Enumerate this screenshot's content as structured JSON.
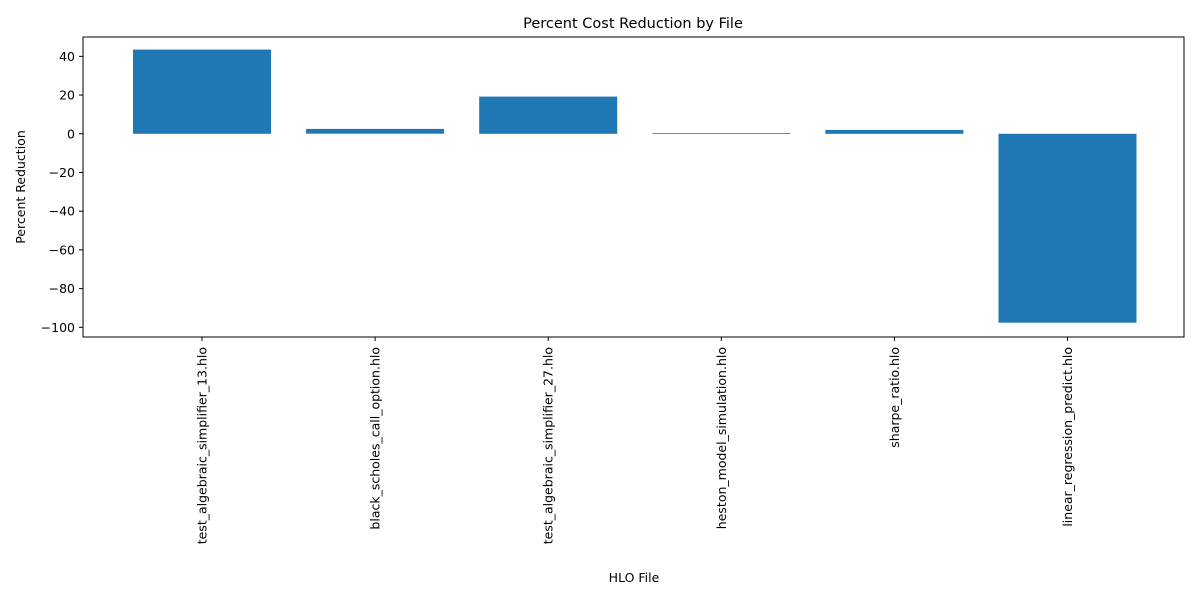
{
  "chart_data": {
    "type": "bar",
    "title": "Percent Cost Reduction by File",
    "xlabel": "HLO File",
    "ylabel": "Percent Reduction",
    "categories": [
      "test_algebraic_simplifier_13.hlo",
      "black_scholes_call_option.hlo",
      "test_algebraic_simplifier_27.hlo",
      "heston_model_simulation.hlo",
      "sharpe_ratio.hlo",
      "linear_regression_predict.hlo"
    ],
    "values": [
      43.5,
      2.5,
      19.2,
      0.4,
      2.0,
      -97.6
    ],
    "ylim": [
      -105,
      50
    ],
    "yticks": [
      40,
      20,
      0,
      -20,
      -40,
      -60,
      -80,
      -100
    ],
    "ytick_labels": [
      "40",
      "20",
      "0",
      "−20",
      "−40",
      "−60",
      "−80",
      "−100"
    ],
    "grid": false,
    "bar_color": "#1f77b4"
  }
}
